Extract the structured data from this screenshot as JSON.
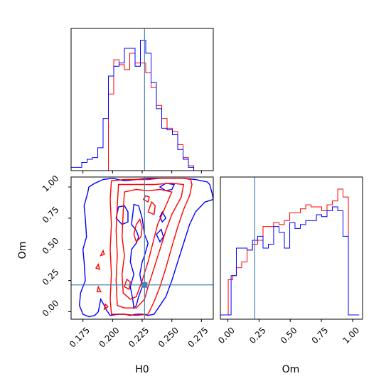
{
  "chart_data": {
    "type": "corner",
    "parameters": [
      "H0",
      "Om"
    ],
    "truths": {
      "H0": 0.227,
      "Om": 0.215
    },
    "truth_color": "#4682b4",
    "series": [
      {
        "color": "#0000ff"
      },
      {
        "color": "#ff0000"
      }
    ],
    "panels": {
      "hist_H0": {
        "xlim": [
          0.165,
          0.285
        ],
        "bin_edges": [
          0.165,
          0.1695,
          0.174,
          0.1785,
          0.183,
          0.1875,
          0.192,
          0.1965,
          0.201,
          0.2055,
          0.21,
          0.2145,
          0.219,
          0.2235,
          0.228,
          0.2325,
          0.237,
          0.2415,
          0.246,
          0.2505,
          0.255,
          0.2595,
          0.264,
          0.2685,
          0.273,
          0.2775,
          0.282
        ],
        "blue": [
          2,
          2,
          5,
          7,
          8,
          14,
          32,
          58,
          64,
          66,
          75,
          75,
          64,
          80,
          72,
          54,
          38,
          26,
          25,
          22,
          13,
          7,
          2,
          0,
          0,
          0
        ],
        "red": [
          0,
          0,
          0,
          0,
          0,
          0,
          0,
          47,
          68,
          65,
          62,
          72,
          66,
          66,
          60,
          51,
          40,
          32,
          26,
          24,
          16,
          8,
          3,
          0,
          0,
          0
        ],
        "xticks": [
          0.175,
          0.2,
          0.225,
          0.25,
          0.275
        ]
      },
      "hist_Om": {
        "xlim": [
          -0.06,
          1.08
        ],
        "bin_edges": [
          -0.06,
          -0.017,
          0.026,
          0.068,
          0.111,
          0.154,
          0.197,
          0.239,
          0.282,
          0.325,
          0.367,
          0.41,
          0.453,
          0.496,
          0.538,
          0.581,
          0.624,
          0.667,
          0.71,
          0.752,
          0.795,
          0.838,
          0.881,
          0.923,
          0.966,
          1.009,
          1.052
        ],
        "blue": [
          0,
          0,
          20,
          34,
          34,
          33,
          38,
          40,
          34,
          36,
          45,
          42,
          34,
          47,
          44,
          46,
          48,
          48,
          51,
          50,
          53,
          55,
          53,
          40,
          0,
          0
        ],
        "red": [
          0,
          0,
          15,
          0,
          0,
          0,
          0,
          0,
          0,
          0,
          0,
          0,
          0,
          0,
          0,
          0,
          0,
          0,
          0,
          0,
          0,
          0,
          0,
          0,
          0,
          0
        ],
        "red_steps": [
          [
            -0.06,
            0
          ],
          [
            -0.017,
            0
          ],
          [
            0.003,
            18
          ],
          [
            0.04,
            20
          ],
          [
            0.068,
            24
          ],
          [
            0.111,
            27
          ],
          [
            0.154,
            33
          ],
          [
            0.197,
            36
          ],
          [
            0.239,
            38
          ],
          [
            0.282,
            45
          ],
          [
            0.325,
            45
          ],
          [
            0.367,
            47
          ],
          [
            0.41,
            46
          ],
          [
            0.453,
            48
          ],
          [
            0.496,
            52
          ],
          [
            0.538,
            52
          ],
          [
            0.581,
            54
          ],
          [
            0.624,
            56
          ],
          [
            0.667,
            55
          ],
          [
            0.71,
            55
          ],
          [
            0.752,
            53
          ],
          [
            0.795,
            56
          ],
          [
            0.838,
            58
          ],
          [
            0.881,
            64
          ],
          [
            0.923,
            60
          ],
          [
            0.966,
            0
          ],
          [
            1.052,
            0
          ]
        ],
        "xticks": [
          0.0,
          0.25,
          0.5,
          0.75,
          1.0
        ],
        "xticklabels": [
          "0.00",
          "0.25",
          "0.50",
          "0.75",
          "1.00"
        ]
      },
      "contour": {
        "xlim": [
          0.165,
          0.285
        ],
        "ylim": [
          -0.06,
          1.08
        ],
        "xticks": [
          0.175,
          0.2,
          0.225,
          0.25,
          0.275
        ],
        "xticklabels": [
          "0.175",
          "0.200",
          "0.225",
          "0.250",
          "0.275"
        ],
        "yticks": [
          0.0,
          0.25,
          0.5,
          0.75,
          1.0
        ],
        "yticklabels": [
          "0.00",
          "0.25",
          "0.50",
          "0.75",
          "1.00"
        ],
        "blue_contours": [
          [
            [
              0.192,
              1.06
            ],
            [
              0.2,
              1.07
            ],
            [
              0.21,
              1.05
            ],
            [
              0.22,
              1.06
            ],
            [
              0.23,
              1.07
            ],
            [
              0.24,
              1.07
            ],
            [
              0.25,
              1.07
            ],
            [
              0.26,
              1.07
            ],
            [
              0.27,
              1.06
            ],
            [
              0.28,
              1.04
            ],
            [
              0.282,
              1.02
            ],
            [
              0.284,
              0.95
            ],
            [
              0.285,
              0.9
            ],
            [
              0.278,
              0.88
            ],
            [
              0.27,
              0.8
            ],
            [
              0.265,
              0.7
            ],
            [
              0.26,
              0.55
            ],
            [
              0.255,
              0.4
            ],
            [
              0.25,
              0.25
            ],
            [
              0.245,
              0.12
            ],
            [
              0.24,
              0.05
            ],
            [
              0.235,
              -0.02
            ],
            [
              0.23,
              -0.03
            ],
            [
              0.225,
              -0.02
            ],
            [
              0.22,
              -0.02
            ],
            [
              0.215,
              -0.03
            ],
            [
              0.21,
              -0.02
            ],
            [
              0.205,
              -0.02
            ],
            [
              0.198,
              -0.03
            ],
            [
              0.195,
              0.01
            ],
            [
              0.193,
              0.05
            ],
            [
              0.19,
              0.1
            ],
            [
              0.188,
              0.0
            ],
            [
              0.185,
              -0.03
            ],
            [
              0.18,
              -0.04
            ],
            [
              0.175,
              -0.02
            ],
            [
              0.172,
              0.05
            ],
            [
              0.173,
              0.15
            ],
            [
              0.177,
              0.25
            ],
            [
              0.176,
              0.4
            ],
            [
              0.175,
              0.5
            ],
            [
              0.178,
              0.6
            ],
            [
              0.177,
              0.75
            ],
            [
              0.176,
              0.85
            ],
            [
              0.179,
              0.95
            ],
            [
              0.18,
              1.0
            ],
            [
              0.185,
              1.03
            ],
            [
              0.192,
              1.06
            ]
          ],
          [
            [
              0.22,
              0.55
            ],
            [
              0.216,
              0.5
            ],
            [
              0.215,
              0.4
            ],
            [
              0.218,
              0.3
            ],
            [
              0.215,
              0.2
            ],
            [
              0.217,
              0.1
            ],
            [
              0.218,
              0.03
            ],
            [
              0.22,
              0.05
            ],
            [
              0.222,
              0.12
            ],
            [
              0.225,
              0.2
            ],
            [
              0.223,
              0.3
            ],
            [
              0.225,
              0.4
            ],
            [
              0.227,
              0.45
            ],
            [
              0.23,
              0.55
            ],
            [
              0.227,
              0.62
            ],
            [
              0.225,
              0.75
            ],
            [
              0.222,
              0.85
            ],
            [
              0.218,
              0.86
            ],
            [
              0.217,
              0.78
            ],
            [
              0.216,
              0.7
            ],
            [
              0.22,
              0.65
            ],
            [
              0.222,
              0.6
            ],
            [
              0.22,
              0.55
            ]
          ],
          [
            [
              0.205,
              0.84
            ],
            [
              0.21,
              0.85
            ],
            [
              0.213,
              0.8
            ],
            [
              0.213,
              0.72
            ],
            [
              0.208,
              0.7
            ],
            [
              0.203,
              0.75
            ],
            [
              0.205,
              0.84
            ]
          ],
          [
            [
              0.237,
              0.62
            ],
            [
              0.241,
              0.66
            ],
            [
              0.243,
              0.6
            ],
            [
              0.24,
              0.56
            ],
            [
              0.237,
              0.62
            ]
          ],
          [
            [
              0.24,
              1.0
            ],
            [
              0.245,
              1.03
            ],
            [
              0.252,
              1.02
            ],
            [
              0.25,
              0.98
            ],
            [
              0.245,
              0.97
            ],
            [
              0.24,
              1.0
            ]
          ],
          [
            [
              0.24,
              0.76
            ],
            [
              0.242,
              0.8
            ],
            [
              0.245,
              0.75
            ],
            [
              0.242,
              0.72
            ],
            [
              0.24,
              0.76
            ]
          ]
        ],
        "red_contours": [
          [
            [
              0.199,
              -0.02
            ],
            [
              0.198,
              0.1
            ],
            [
              0.199,
              0.3
            ],
            [
              0.198,
              0.5
            ],
            [
              0.199,
              0.7
            ],
            [
              0.198,
              0.9
            ],
            [
              0.199,
              1.05
            ],
            [
              0.21,
              1.06
            ],
            [
              0.22,
              1.06
            ],
            [
              0.23,
              1.06
            ],
            [
              0.24,
              1.07
            ],
            [
              0.25,
              1.07
            ],
            [
              0.26,
              1.07
            ],
            [
              0.266,
              1.06
            ],
            [
              0.267,
              1.02
            ],
            [
              0.265,
              0.93
            ],
            [
              0.26,
              0.82
            ],
            [
              0.255,
              0.68
            ],
            [
              0.25,
              0.52
            ],
            [
              0.245,
              0.35
            ],
            [
              0.24,
              0.2
            ],
            [
              0.235,
              0.08
            ],
            [
              0.23,
              -0.02
            ],
            [
              0.22,
              -0.03
            ],
            [
              0.21,
              -0.02
            ],
            [
              0.199,
              -0.02
            ]
          ],
          [
            [
              0.204,
              0.05
            ],
            [
              0.203,
              0.25
            ],
            [
              0.204,
              0.45
            ],
            [
              0.203,
              0.65
            ],
            [
              0.204,
              0.85
            ],
            [
              0.205,
              1.02
            ],
            [
              0.22,
              1.02
            ],
            [
              0.235,
              1.02
            ],
            [
              0.25,
              1.03
            ],
            [
              0.26,
              1.02
            ],
            [
              0.258,
              0.92
            ],
            [
              0.25,
              0.78
            ],
            [
              0.245,
              0.65
            ],
            [
              0.24,
              0.5
            ],
            [
              0.235,
              0.35
            ],
            [
              0.23,
              0.2
            ],
            [
              0.227,
              0.1
            ],
            [
              0.22,
              0.03
            ],
            [
              0.21,
              0.03
            ],
            [
              0.204,
              0.05
            ]
          ],
          [
            [
              0.209,
              0.15
            ],
            [
              0.208,
              0.3
            ],
            [
              0.21,
              0.45
            ],
            [
              0.208,
              0.6
            ],
            [
              0.209,
              0.8
            ],
            [
              0.21,
              0.96
            ],
            [
              0.22,
              0.98
            ],
            [
              0.23,
              0.97
            ],
            [
              0.24,
              0.98
            ],
            [
              0.25,
              0.96
            ],
            [
              0.245,
              0.85
            ],
            [
              0.238,
              0.7
            ],
            [
              0.234,
              0.55
            ],
            [
              0.23,
              0.4
            ],
            [
              0.225,
              0.25
            ],
            [
              0.22,
              0.12
            ],
            [
              0.215,
              0.1
            ],
            [
              0.209,
              0.15
            ]
          ],
          [
            [
              0.218,
              0.62
            ],
            [
              0.22,
              0.7
            ],
            [
              0.223,
              0.74
            ],
            [
              0.225,
              0.68
            ],
            [
              0.224,
              0.6
            ],
            [
              0.22,
              0.56
            ],
            [
              0.218,
              0.62
            ]
          ],
          [
            [
              0.23,
              0.8
            ],
            [
              0.233,
              0.88
            ],
            [
              0.236,
              0.85
            ],
            [
              0.235,
              0.78
            ],
            [
              0.23,
              0.8
            ]
          ],
          [
            [
              0.21,
              0.2
            ],
            [
              0.212,
              0.26
            ],
            [
              0.215,
              0.24
            ],
            [
              0.214,
              0.18
            ],
            [
              0.21,
              0.2
            ]
          ],
          [
            [
              0.226,
              0.9
            ],
            [
              0.228,
              0.93
            ],
            [
              0.231,
              0.92
            ],
            [
              0.23,
              0.88
            ],
            [
              0.226,
              0.9
            ]
          ],
          [
            [
              0.187,
              0.16
            ],
            [
              0.188,
              0.2
            ],
            [
              0.19,
              0.16
            ],
            [
              0.187,
              0.16
            ]
          ],
          [
            [
              0.186,
              0.35
            ],
            [
              0.188,
              0.38
            ],
            [
              0.189,
              0.34
            ],
            [
              0.186,
              0.35
            ]
          ],
          [
            [
              0.19,
              0.45
            ],
            [
              0.192,
              0.49
            ],
            [
              0.193,
              0.46
            ],
            [
              0.19,
              0.45
            ]
          ],
          [
            [
              0.193,
              0.02
            ],
            [
              0.194,
              0.06
            ],
            [
              0.196,
              0.04
            ],
            [
              0.193,
              0.02
            ]
          ]
        ]
      }
    },
    "xlabels": {
      "contour": "H0",
      "hist_Om": "Om"
    },
    "ylabel_contour": "Om"
  }
}
